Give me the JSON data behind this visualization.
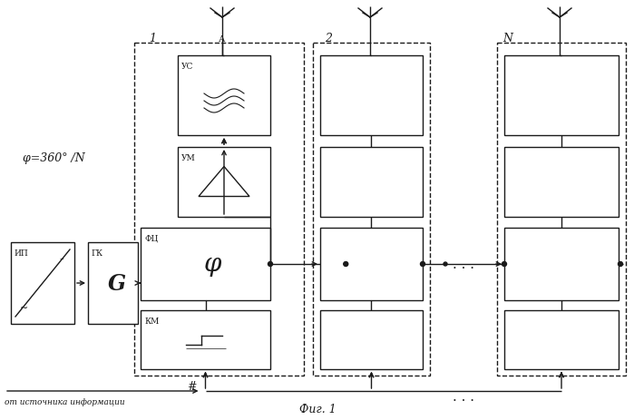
{
  "title": "Фиг. 1",
  "bg_color": "#ffffff",
  "line_color": "#1a1a1a",
  "phi_label": "φ=360° /N",
  "info_label": "от источника информации"
}
